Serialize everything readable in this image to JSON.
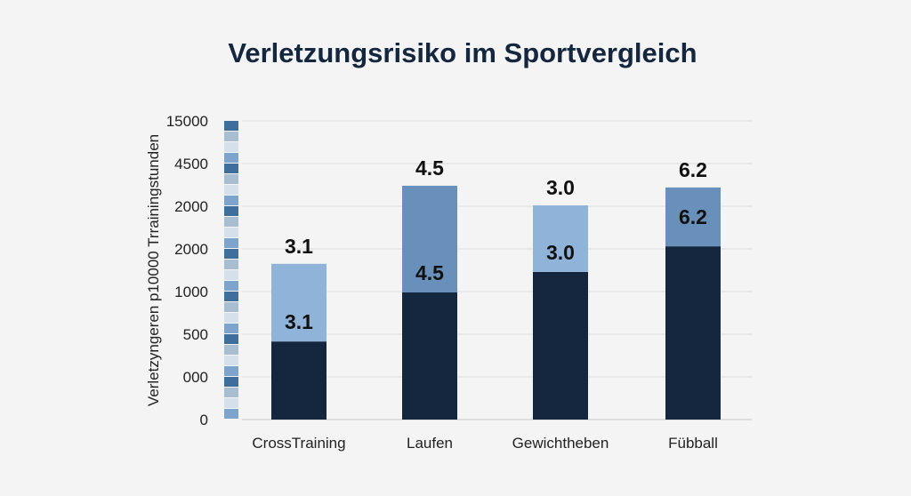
{
  "chart_data": {
    "type": "bar",
    "stacked": true,
    "title": "Verletzungsrisiko im Sportvergleich",
    "ylabel": "Verletzyngeren p10000 Trrainingstunden",
    "xlabel": "",
    "y_tick_labels": [
      "0",
      "000",
      "500",
      "1000",
      "2000",
      "2000",
      "4500",
      "15000"
    ],
    "grid": true,
    "categories": [
      "CrossTraining",
      "Laufen",
      "Gewichtheben",
      "Fübball"
    ],
    "series": [
      {
        "values_axis_steps": [
          1.83,
          2.98,
          3.46,
          4.06
        ],
        "color": "#15263f"
      },
      {
        "values_axis_steps": [
          1.82,
          2.5,
          1.56,
          1.38
        ],
        "colors": [
          "#8fb3d9",
          "#6890ba",
          "#8fb3d9",
          "#6890ba"
        ]
      }
    ],
    "top_labels": [
      "3.1",
      "4.5",
      "3.0",
      "6.2"
    ],
    "inner_labels": [
      "3.1",
      "4.5",
      "3.0",
      "6.2"
    ],
    "strip_colors": [
      "#3f6d9c",
      "#a9bdd3",
      "#d6e0ea",
      "#7ea4cb"
    ]
  }
}
